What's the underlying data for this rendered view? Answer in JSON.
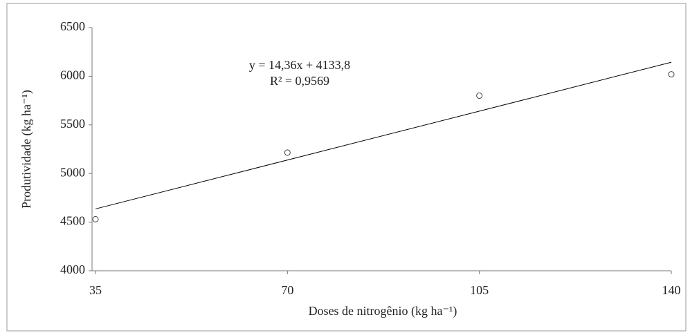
{
  "chart_data": {
    "type": "scatter",
    "x_label": "Doses de nitrogênio (kg ha⁻¹)",
    "y_label": "Produtividade (kg ha⁻¹)",
    "annotations": [
      "y = 14,36x + 4133,8",
      "R² = 0,9569"
    ],
    "x": [
      35,
      70,
      105,
      140
    ],
    "values": [
      4530,
      5215,
      5800,
      6020
    ],
    "color": "#404040",
    "trendline": {
      "x": [
        35,
        140
      ],
      "values": [
        4636,
        6144
      ],
      "color": "#000000"
    },
    "xlim": [
      35,
      140
    ],
    "xticks": [
      35,
      70,
      105,
      140
    ],
    "ylim": [
      4000,
      6500
    ],
    "yticks": [
      4000,
      4500,
      5000,
      5500,
      6000,
      6500
    ],
    "grid": false
  }
}
